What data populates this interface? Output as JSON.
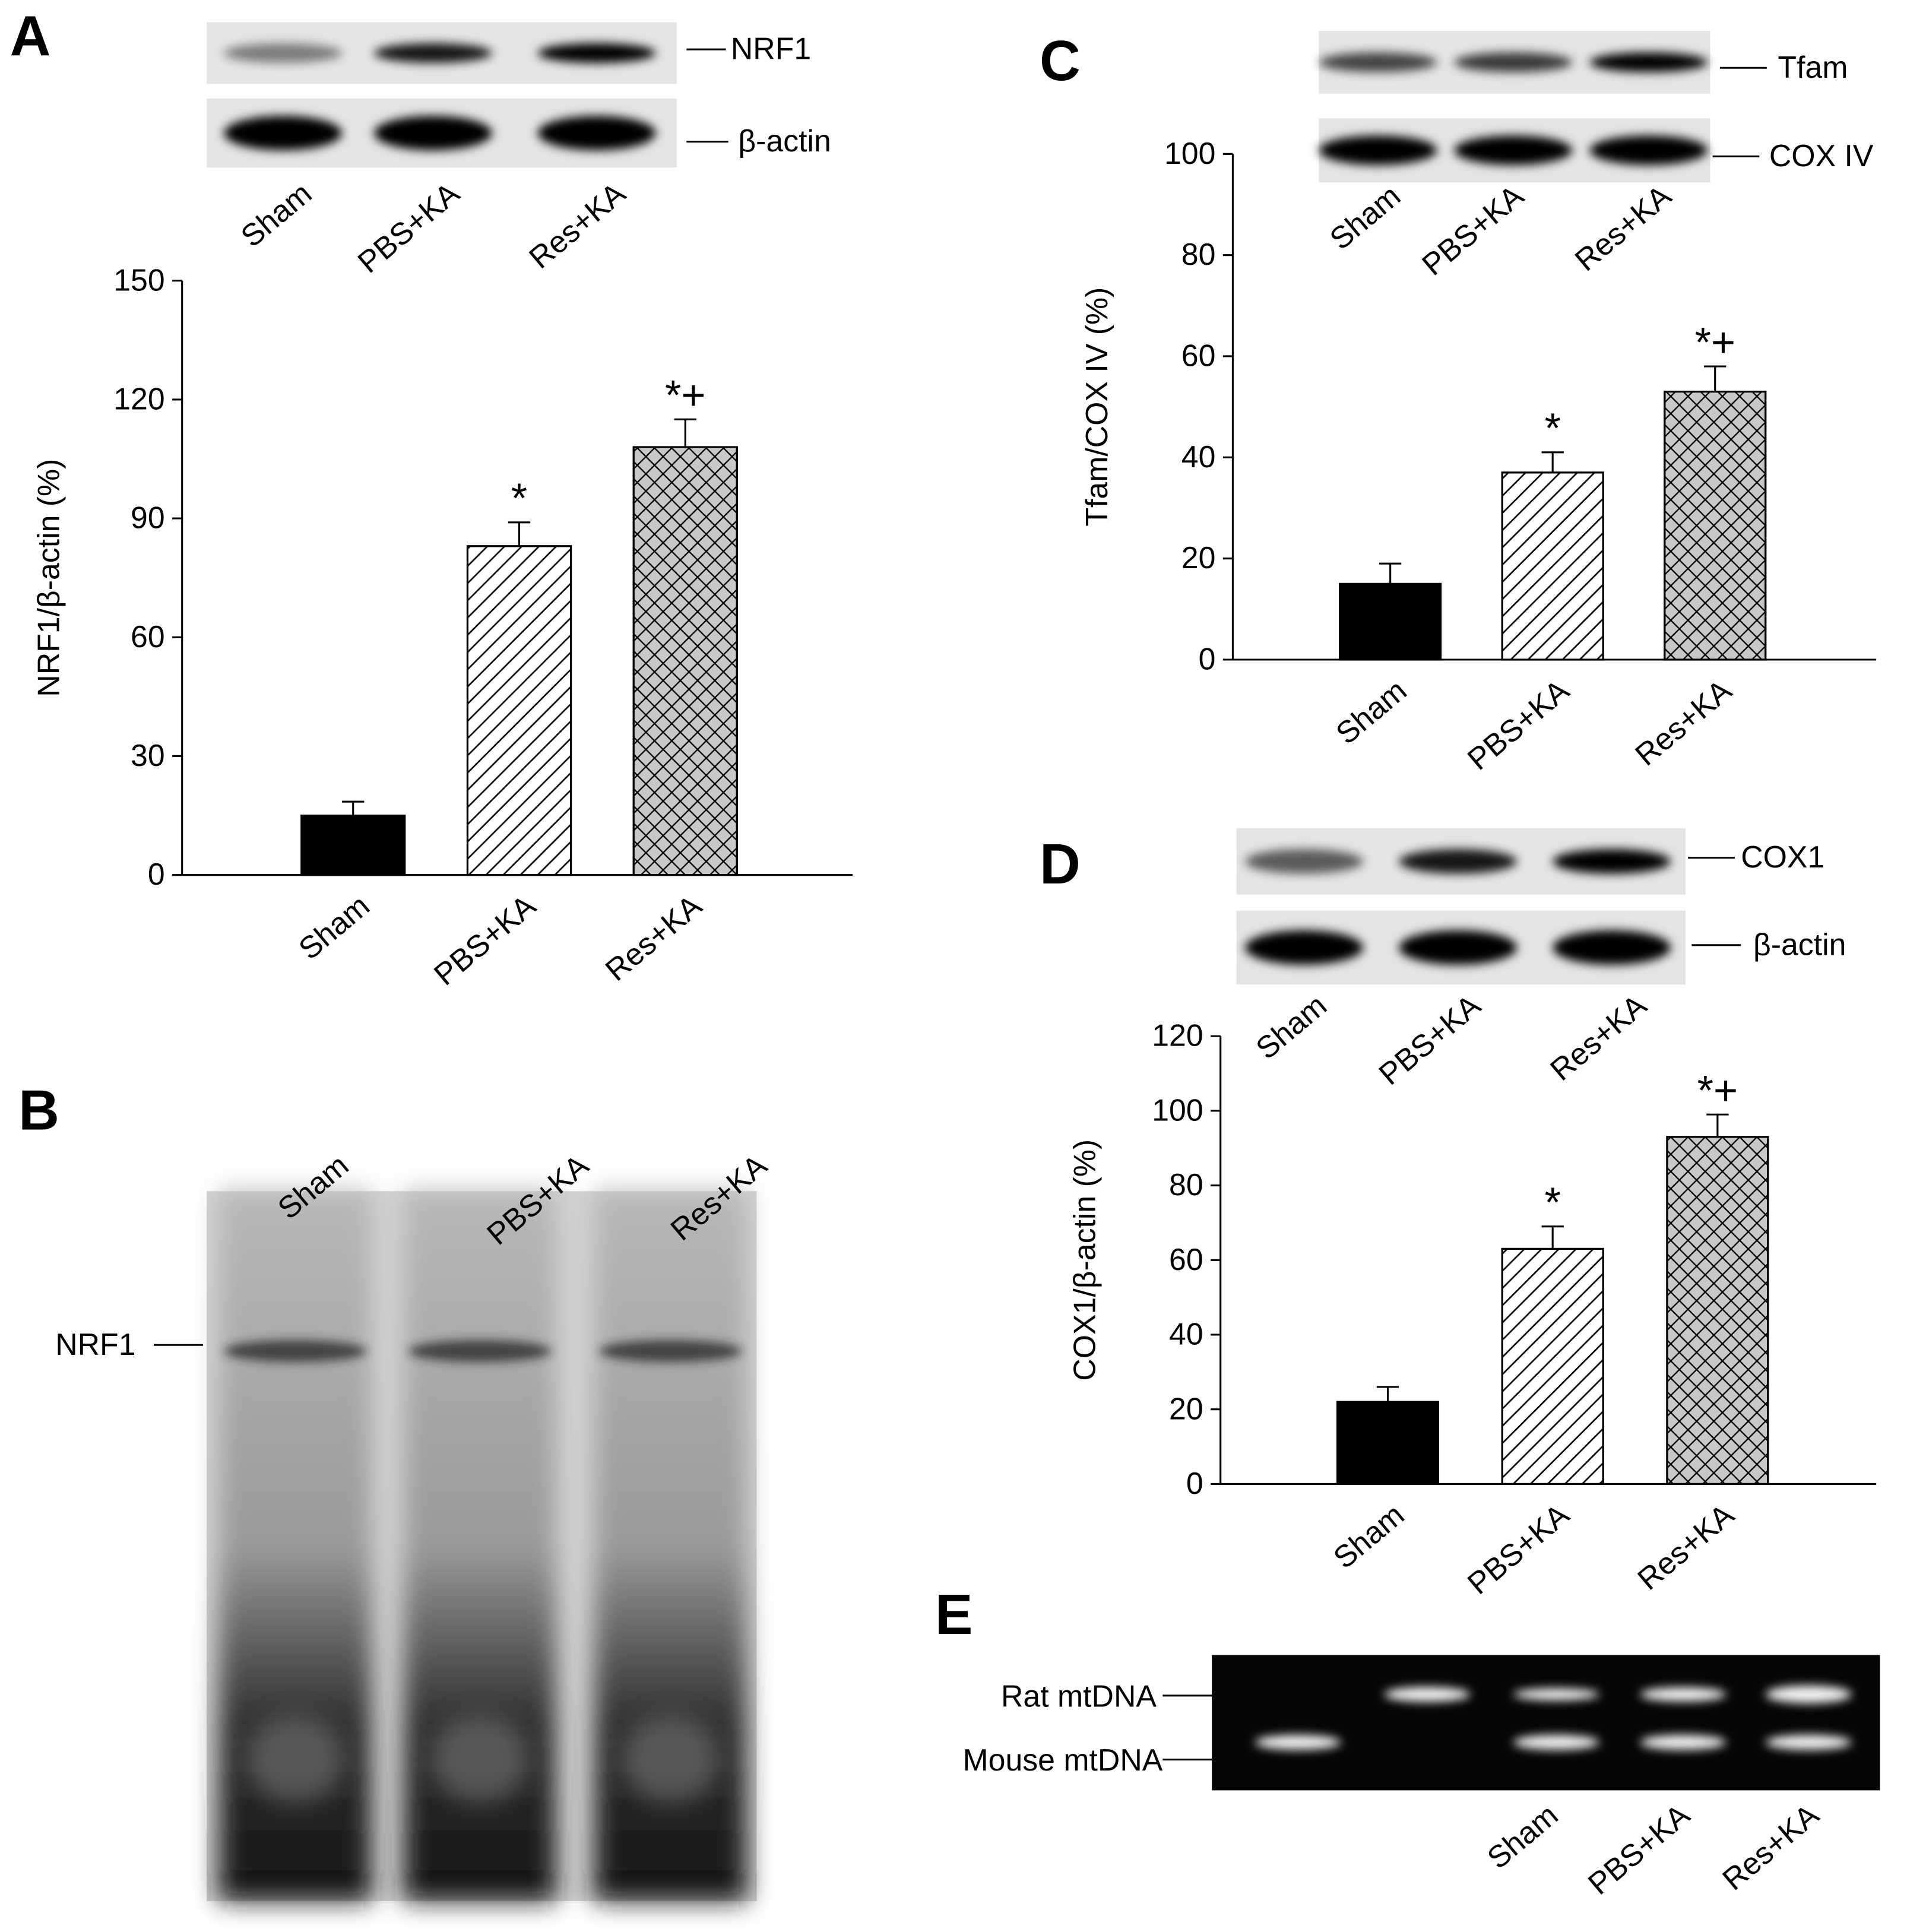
{
  "chart_data": [
    {
      "type": "bar",
      "panel": "A",
      "ylabel": "NRF1/β-actin (%)",
      "categories": [
        "Sham",
        "PBS+KA",
        "Res+KA"
      ],
      "values": [
        15,
        83,
        108
      ],
      "errors": [
        3.5,
        6,
        7
      ],
      "annotations": [
        null,
        "*",
        "*+"
      ],
      "colors": [
        "#000000",
        "#ffffff",
        "#c8c8c8"
      ],
      "hatches": [
        null,
        "diagonal",
        "cross"
      ],
      "ylim": [
        0,
        150
      ],
      "yticks": [
        0,
        30,
        60,
        90,
        120,
        150
      ]
    },
    {
      "type": "bar",
      "panel": "C",
      "ylabel": "Tfam/COX IV (%)",
      "categories": [
        "Sham",
        "PBS+KA",
        "Res+KA"
      ],
      "values": [
        15,
        37,
        53
      ],
      "errors": [
        4,
        4,
        5
      ],
      "annotations": [
        null,
        "*",
        "*+"
      ],
      "colors": [
        "#000000",
        "#ffffff",
        "#c8c8c8"
      ],
      "hatches": [
        null,
        "diagonal",
        "cross"
      ],
      "ylim": [
        0,
        100
      ],
      "yticks": [
        0,
        20,
        40,
        60,
        80,
        100
      ]
    },
    {
      "type": "bar",
      "panel": "D",
      "ylabel": "COX1/β-actin (%)",
      "categories": [
        "Sham",
        "PBS+KA",
        "Res+KA"
      ],
      "values": [
        22,
        63,
        93
      ],
      "errors": [
        4,
        6,
        6
      ],
      "annotations": [
        null,
        "*",
        "*+"
      ],
      "colors": [
        "#000000",
        "#ffffff",
        "#c8c8c8"
      ],
      "hatches": [
        null,
        "diagonal",
        "cross"
      ],
      "ylim": [
        0,
        120
      ],
      "yticks": [
        0,
        20,
        40,
        60,
        80,
        100,
        120
      ]
    }
  ],
  "blots": [
    {
      "bands": [
        "NRF1",
        "β-actin"
      ]
    },
    {
      "panel": "B",
      "lanes": [
        "Sham",
        "PBS+KA",
        "Res+KA"
      ],
      "bands": [
        "NRF1"
      ]
    },
    {
      "bands": [
        "Tfam",
        "COX IV"
      ]
    },
    {
      "bands": [
        "COX1",
        "β-actin"
      ]
    },
    {
      "panel": "E",
      "lanes": [
        "Sham",
        "PBS+KA",
        "Res+KA"
      ],
      "bands": [
        "Rat mtDNA",
        "Mouse mtDNA"
      ]
    }
  ]
}
